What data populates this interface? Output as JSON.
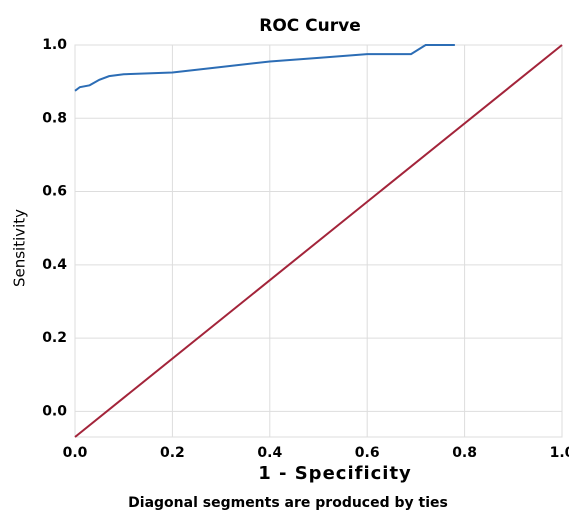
{
  "chart_data": {
    "type": "line",
    "title": "ROC Curve",
    "x_label": "1 - Specificity",
    "y_label": "Sensitivity",
    "footnote": "Diagonal segments are produced by ties",
    "xlim": [
      0,
      1
    ],
    "ylim": [
      -0.07,
      1
    ],
    "xticks": [
      {
        "value": 0,
        "label": "0.0"
      },
      {
        "value": 0.2,
        "label": "0.2"
      },
      {
        "value": 0.4,
        "label": "0.4"
      },
      {
        "value": 0.6,
        "label": "0.6"
      },
      {
        "value": 0.8,
        "label": "0.8"
      },
      {
        "value": 1,
        "label": "1.0"
      }
    ],
    "yticks": [
      {
        "value": 0,
        "label": "0.0"
      },
      {
        "value": 0.2,
        "label": "0.2"
      },
      {
        "value": 0.4,
        "label": "0.4"
      },
      {
        "value": 0.6,
        "label": "0.6"
      },
      {
        "value": 0.8,
        "label": "0.8"
      },
      {
        "value": 1,
        "label": "1.0"
      }
    ],
    "grid": true,
    "series": [
      {
        "color": "#2c6db5",
        "x": [
          0,
          0.01,
          0.03,
          0.05,
          0.07,
          0.1,
          0.2,
          0.3,
          0.4,
          0.5,
          0.6,
          0.69,
          0.72,
          0.78
        ],
        "values": [
          0.875,
          0.885,
          0.89,
          0.905,
          0.915,
          0.92,
          0.925,
          0.94,
          0.955,
          0.965,
          0.975,
          0.975,
          1.0,
          1.0
        ]
      },
      {
        "color": "#a3243a",
        "x": [
          0,
          1
        ],
        "values": [
          -0.07,
          1
        ]
      }
    ]
  }
}
